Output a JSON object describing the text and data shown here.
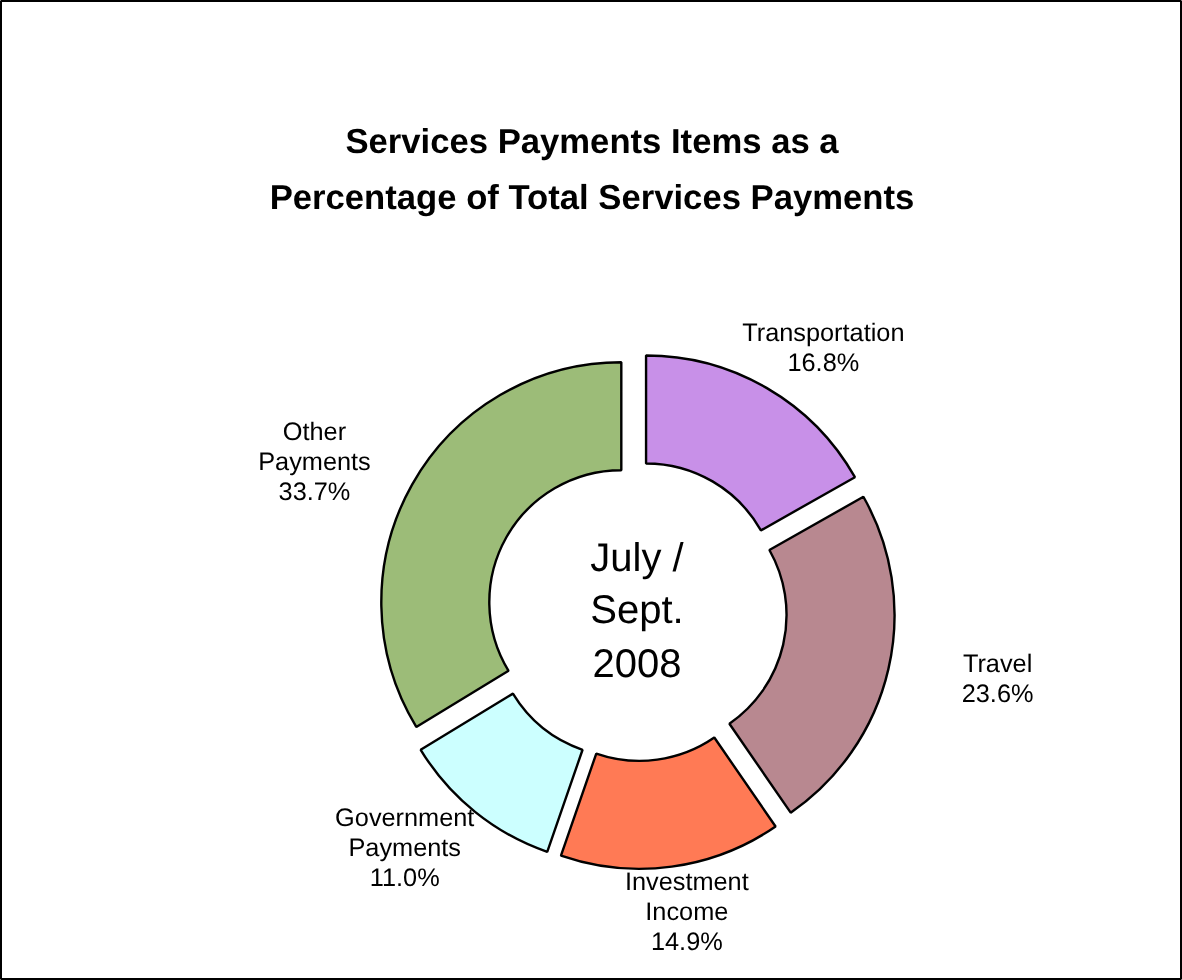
{
  "chart_data": {
    "type": "donut",
    "title": "Services Payments Items as a Percentage of Total Services Payments",
    "categories": [
      "Transportation",
      "Travel",
      "Investment Income",
      "Government Payments",
      "Other Payments"
    ],
    "values": [
      16.8,
      23.6,
      14.9,
      11.0,
      33.7
    ],
    "value_labels": [
      "16.8%",
      "23.6%",
      "14.9%",
      "11.0%",
      "33.7%"
    ],
    "colors": [
      "#c890e8",
      "#b88890",
      "#ff7a55",
      "#ccffff",
      "#9cbc78"
    ],
    "annotations": [
      "July / Sept. 2008"
    ]
  }
}
